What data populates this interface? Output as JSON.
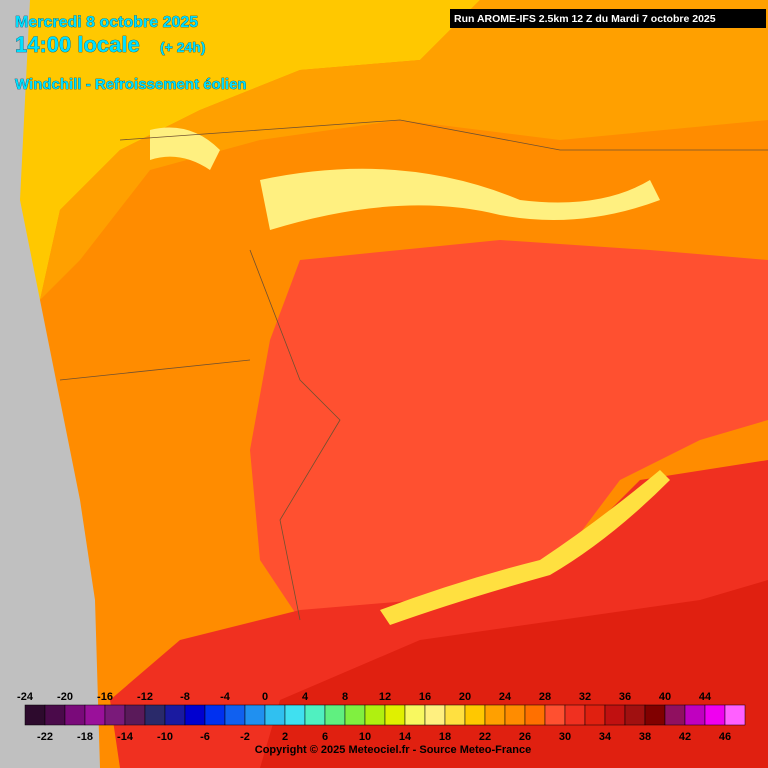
{
  "header": {
    "date": "Mercredi 8 octobre 2025",
    "time": "14:00 locale",
    "lead": "(+ 24h)",
    "parameter": "Windchill - Refroissement éolien",
    "run": "Run AROME-IFS 2.5km 12 Z du Mardi 7 octobre 2025"
  },
  "legend": {
    "values": [
      -24,
      -22,
      -20,
      -18,
      -16,
      -14,
      -12,
      -10,
      -8,
      -6,
      -4,
      -2,
      0,
      2,
      4,
      6,
      8,
      10,
      12,
      14,
      16,
      18,
      20,
      22,
      24,
      26,
      28,
      30,
      32,
      34,
      36,
      38,
      40,
      42,
      44,
      46
    ],
    "colors": [
      "#2d0a2d",
      "#4a0a4a",
      "#7a0a7a",
      "#9a109a",
      "#7a1a7a",
      "#5a1a5a",
      "#2a2a6a",
      "#1a1aa0",
      "#0000d0",
      "#0030f0",
      "#1060f0",
      "#2090f0",
      "#30c0f0",
      "#40e0f0",
      "#50f0c0",
      "#60f080",
      "#80f040",
      "#b0f010",
      "#e0f000",
      "#f8f860",
      "#fff080",
      "#ffe040",
      "#ffc800",
      "#ffa000",
      "#ff8c00",
      "#ff7000",
      "#ff5030",
      "#f03020",
      "#e02010",
      "#c01010",
      "#a01010",
      "#800000",
      "#901060",
      "#c000c0",
      "#f000f0",
      "#ff60ff"
    ]
  },
  "footer": {
    "copyright": "Copyright © 2025 Meteociel.fr - Source Meteo-France"
  }
}
